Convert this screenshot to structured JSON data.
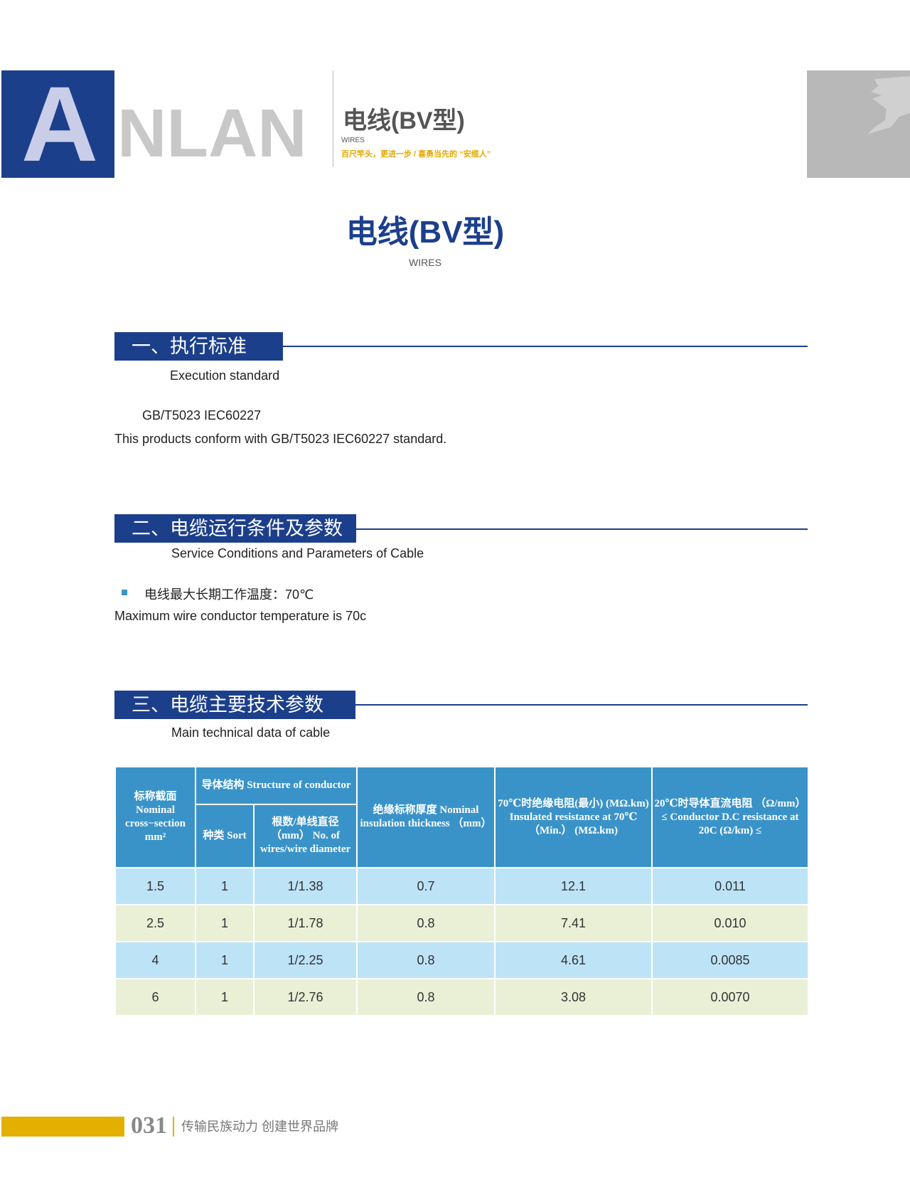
{
  "header": {
    "logo_text": "ANLAN",
    "logo_first": "A",
    "logo_rest": "NLAN",
    "title": "电线(BV型)",
    "subtitle": "WIRES",
    "slogan": "百尺竿头，更进一步 / 喜勇当先的 “安缆人”"
  },
  "main": {
    "title": "电线(BV型)",
    "subtitle": "WIRES"
  },
  "sections": [
    {
      "title": "一、执行标准",
      "subtitle": "Execution standard",
      "lines": [
        "GB/T5023  IEC60227",
        "This products conform with GB/T5023  IEC60227 standard."
      ]
    },
    {
      "title": "二、电缆运行条件及参数",
      "subtitle": "Service Conditions and Parameters of Cable",
      "bullet": "电线最大长期工作温度：70℃",
      "lines": [
        "Maximum wire conductor temperature is 70c"
      ]
    },
    {
      "title": "三、电缆主要技术参数",
      "subtitle": "Main technical data of cable"
    }
  ],
  "table": {
    "headers": {
      "nominal": "标称截面 Nominal cross−section mm²",
      "structure": "导体结构 Structure of conductor",
      "sort": "种类 Sort",
      "wires": "根数/单线直径 （mm） No. of wires/wire diameter",
      "insulation": "绝缘标称厚度 Nominal insulation thickness （mm）",
      "ins_resistance": "70℃时绝缘电阻(最小) (MΩ.km) Insulated resistance at 70℃ （Min.） (MΩ.km)",
      "dc_resistance": "20℃时导体直流电阻 （Ω/mm）≤ Conductor D.C resistance at 20C (Ω/km) ≤"
    },
    "rows": [
      [
        "1.5",
        "1",
        "1/1.38",
        "0.7",
        "12.1",
        "0.011"
      ],
      [
        "2.5",
        "1",
        "1/1.78",
        "0.8",
        "7.41",
        "0.010"
      ],
      [
        "4",
        "1",
        "1/2.25",
        "0.8",
        "4.61",
        "0.0085"
      ],
      [
        "6",
        "1",
        "1/2.76",
        "0.8",
        "3.08",
        "0.0070"
      ]
    ]
  },
  "footer": {
    "page": "031",
    "text": "传输民族动力  创建世界品牌"
  },
  "colors": {
    "brand_blue": "#1c3f8c",
    "table_header": "#3a93c8",
    "row_blue": "#bde3f7",
    "row_green": "#e9f0d6",
    "accent_yellow": "#e3af00"
  }
}
